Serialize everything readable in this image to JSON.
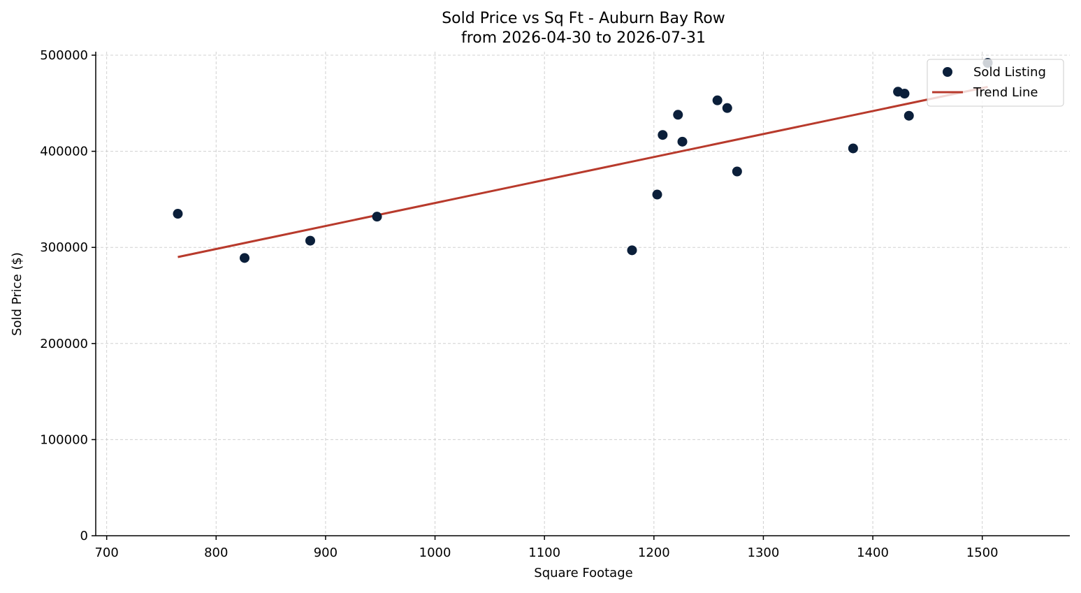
{
  "chart_data": {
    "type": "scatter",
    "title": "Sold Price vs Sq Ft - Auburn Bay Row",
    "subtitle": "from 2026-04-30 to 2026-07-31",
    "xlabel": "Square Footage",
    "ylabel": "Sold Price ($)",
    "xlim": [
      690,
      1580
    ],
    "ylim": [
      0,
      500000
    ],
    "xticks": [
      700,
      800,
      900,
      1000,
      1100,
      1200,
      1300,
      1400,
      1500
    ],
    "yticks": [
      0,
      100000,
      200000,
      300000,
      400000,
      500000
    ],
    "xtick_labels": [
      "700",
      "800",
      "900",
      "1000",
      "1100",
      "1200",
      "1300",
      "1400",
      "1500"
    ],
    "ytick_labels": [
      "0",
      "100000",
      "200000",
      "300000",
      "400000",
      "500000"
    ],
    "grid": true,
    "legend_position": "top-right",
    "series": [
      {
        "name": "Sold Listing",
        "type": "scatter",
        "color": "#0b1f3a",
        "points": [
          {
            "x": 765,
            "y": 335000
          },
          {
            "x": 826,
            "y": 289000
          },
          {
            "x": 886,
            "y": 307000
          },
          {
            "x": 947,
            "y": 332000
          },
          {
            "x": 1180,
            "y": 297000
          },
          {
            "x": 1203,
            "y": 355000
          },
          {
            "x": 1208,
            "y": 417000
          },
          {
            "x": 1222,
            "y": 438000
          },
          {
            "x": 1226,
            "y": 410000
          },
          {
            "x": 1258,
            "y": 453000
          },
          {
            "x": 1267,
            "y": 445000
          },
          {
            "x": 1276,
            "y": 379000
          },
          {
            "x": 1382,
            "y": 403000
          },
          {
            "x": 1423,
            "y": 462000
          },
          {
            "x": 1429,
            "y": 460000
          },
          {
            "x": 1433,
            "y": 437000
          },
          {
            "x": 1505,
            "y": 492000
          }
        ]
      },
      {
        "name": "Trend Line",
        "type": "line",
        "color": "#b83a2c",
        "points": [
          {
            "x": 765,
            "y": 290000
          },
          {
            "x": 1505,
            "y": 467000
          }
        ]
      }
    ]
  }
}
